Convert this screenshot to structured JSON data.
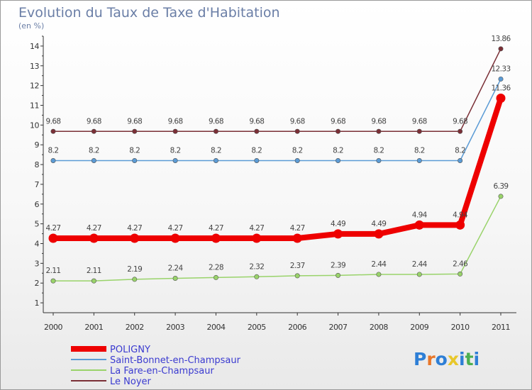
{
  "chart_data": {
    "type": "line",
    "title": "Evolution du Taux de Taxe d'Habitation",
    "subtitle": "(en %)",
    "xlabel": "",
    "ylabel": "",
    "categories": [
      "2000",
      "2001",
      "2002",
      "2003",
      "2004",
      "2005",
      "2006",
      "2007",
      "2008",
      "2009",
      "2010",
      "2011"
    ],
    "ylim": [
      0.5,
      14.5
    ],
    "yticks": [
      1,
      2,
      3,
      4,
      5,
      6,
      7,
      8,
      9,
      10,
      11,
      12,
      13,
      14
    ],
    "series": [
      {
        "name": "POLIGNY",
        "color": "#ee0000",
        "values": [
          4.27,
          4.27,
          4.27,
          4.27,
          4.27,
          4.27,
          4.27,
          4.49,
          4.49,
          4.94,
          4.94,
          11.36
        ],
        "labels": [
          "4.27",
          "4.27",
          "4.27",
          "4.27",
          "4.27",
          "4.27",
          "4.27",
          "4.49",
          "4.49",
          "4.94",
          "4.94",
          "11.36"
        ]
      },
      {
        "name": "Saint-Bonnet-en-Champsaur",
        "color": "#5b9bd5",
        "values": [
          8.2,
          8.2,
          8.2,
          8.2,
          8.2,
          8.2,
          8.2,
          8.2,
          8.2,
          8.2,
          8.2,
          12.33
        ],
        "labels": [
          "8.2",
          "8.2",
          "8.2",
          "8.2",
          "8.2",
          "8.2",
          "8.2",
          "8.2",
          "8.2",
          "8.2",
          "8.2",
          "12.33"
        ]
      },
      {
        "name": "La Fare-en-Champsaur",
        "color": "#99d36a",
        "values": [
          2.11,
          2.11,
          2.19,
          2.24,
          2.28,
          2.32,
          2.37,
          2.39,
          2.44,
          2.44,
          2.46,
          6.39
        ],
        "labels": [
          "2.11",
          "2.11",
          "2.19",
          "2.24",
          "2.28",
          "2.32",
          "2.37",
          "2.39",
          "2.44",
          "2.44",
          "2.46",
          "6.39"
        ]
      },
      {
        "name": "Le Noyer",
        "color": "#7a2f36",
        "values": [
          9.68,
          9.68,
          9.68,
          9.68,
          9.68,
          9.68,
          9.68,
          9.68,
          9.68,
          9.68,
          9.68,
          13.86
        ],
        "labels": [
          "9.68",
          "9.68",
          "9.68",
          "9.68",
          "9.68",
          "9.68",
          "9.68",
          "9.68",
          "9.68",
          "9.68",
          "9.68",
          "13.86"
        ]
      }
    ],
    "legend_position": "bottom-left"
  },
  "logo": {
    "letters": [
      "P",
      "r",
      "o",
      "x",
      "i",
      "t",
      "i"
    ],
    "colors": [
      "#2e7fd6",
      "#e8772a",
      "#2e7fd6",
      "#e8c72a",
      "#2e7fd6",
      "#4caf50",
      "#2e7fd6"
    ]
  }
}
